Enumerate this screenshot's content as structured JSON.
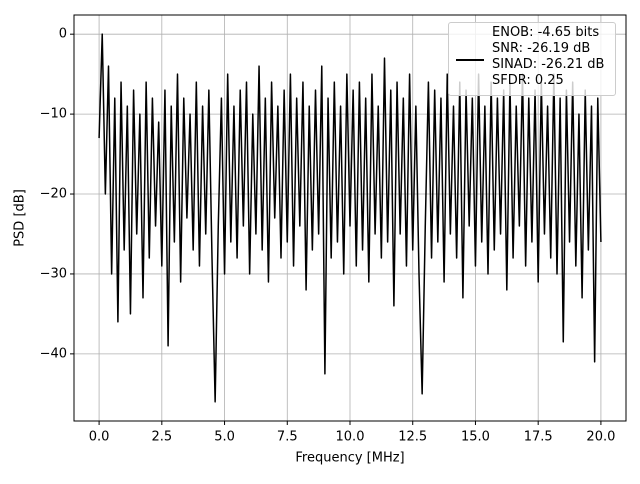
{
  "chart_data": {
    "type": "line",
    "x_label": "Frequency [MHz]",
    "y_label": "PSD [dB]",
    "xlim": [
      -1.0,
      21.0
    ],
    "ylim": [
      -48.4,
      2.4
    ],
    "xticks": [
      {
        "value": 0,
        "label": "0.0"
      },
      2.5,
      {
        "value": 5,
        "label": "5.0"
      },
      7.5,
      {
        "value": 10,
        "label": "10.0"
      },
      12.5,
      {
        "value": 15,
        "label": "15.0"
      },
      17.5,
      {
        "value": 20,
        "label": "20.0"
      }
    ],
    "yticks": [
      0,
      {
        "value": -10,
        "label": "−10"
      },
      {
        "value": -20,
        "label": "−20"
      },
      {
        "value": -30,
        "label": "−30"
      },
      {
        "value": -40,
        "label": "−40"
      }
    ],
    "grid": true,
    "legend": "upper right",
    "x": [
      0,
      0.125,
      0.25,
      0.375,
      0.5,
      0.625,
      0.75,
      0.875,
      1,
      1.125,
      1.25,
      1.375,
      1.5,
      1.625,
      1.75,
      1.875,
      2,
      2.125,
      2.25,
      2.375,
      2.5,
      2.625,
      2.75,
      2.875,
      3,
      3.125,
      3.25,
      3.375,
      3.5,
      3.625,
      3.75,
      3.875,
      4,
      4.125,
      4.25,
      4.375,
      4.5,
      4.625,
      4.75,
      4.875,
      5,
      5.125,
      5.25,
      5.375,
      5.5,
      5.625,
      5.75,
      5.875,
      6,
      6.125,
      6.25,
      6.375,
      6.5,
      6.625,
      6.75,
      6.875,
      7,
      7.125,
      7.25,
      7.375,
      7.5,
      7.625,
      7.75,
      7.875,
      8,
      8.125,
      8.25,
      8.375,
      8.5,
      8.625,
      8.75,
      8.875,
      9,
      9.125,
      9.25,
      9.375,
      9.5,
      9.625,
      9.75,
      9.875,
      10,
      10.125,
      10.25,
      10.375,
      10.5,
      10.625,
      10.75,
      10.875,
      11,
      11.125,
      11.25,
      11.375,
      11.5,
      11.625,
      11.75,
      11.875,
      12,
      12.125,
      12.25,
      12.375,
      12.5,
      12.625,
      12.75,
      12.875,
      13,
      13.125,
      13.25,
      13.375,
      13.5,
      13.625,
      13.75,
      13.875,
      14,
      14.125,
      14.25,
      14.375,
      14.5,
      14.625,
      14.75,
      14.875,
      15,
      15.125,
      15.25,
      15.375,
      15.5,
      15.625,
      15.75,
      15.875,
      16,
      16.125,
      16.25,
      16.375,
      16.5,
      16.625,
      16.75,
      16.875,
      17,
      17.125,
      17.25,
      17.375,
      17.5,
      17.625,
      17.75,
      17.875,
      18,
      18.125,
      18.25,
      18.375,
      18.5,
      18.625,
      18.75,
      18.875,
      19,
      19.125,
      19.25,
      19.375,
      19.5,
      19.625,
      19.75,
      19.875,
      20
    ],
    "series": [
      {
        "name": "ENOB: -4.65 bits\nSNR: -26.19 dB\nSINAD: -26.21 dB\nSFDR: 0.25",
        "color": "#000000",
        "values": [
          -13,
          0,
          -20,
          -4,
          -30,
          -8,
          -36,
          -6,
          -27,
          -9,
          -35,
          -7,
          -25,
          -10,
          -33,
          -6,
          -28,
          -8,
          -24,
          -11,
          -29,
          -7,
          -39,
          -9,
          -26,
          -5,
          -31,
          -8,
          -23,
          -10,
          -27,
          -6,
          -29,
          -9,
          -25,
          -7,
          -28,
          -46,
          -24,
          -8,
          -30,
          -5,
          -26,
          -9,
          -28,
          -7,
          -24,
          -6,
          -30,
          -10,
          -25,
          -4,
          -27,
          -8,
          -31,
          -6,
          -23,
          -9,
          -28,
          -7,
          -26,
          -5,
          -29,
          -8,
          -24,
          -6,
          -32,
          -9,
          -27,
          -7,
          -25,
          -4,
          -42.5,
          -8,
          -28,
          -6,
          -26,
          -9,
          -30,
          -5,
          -24,
          -7,
          -29,
          -6,
          -27,
          -8,
          -31,
          -5,
          -25,
          -9,
          -28,
          -3,
          -26,
          -7,
          -34,
          -6,
          -25,
          -8,
          -29,
          -5,
          -27,
          -9,
          -30,
          -45,
          -24,
          -6,
          -28,
          -7,
          -26,
          -8,
          -31,
          -5,
          -25,
          -9,
          -28,
          -6,
          -33,
          -7,
          -24,
          -8,
          -29,
          -5,
          -26,
          -9,
          -30,
          -6,
          -27,
          -8,
          -25,
          -7,
          -32,
          -6,
          -28,
          -9,
          -24,
          -5,
          -29,
          -8,
          -26,
          -7,
          -31,
          -6,
          -25,
          -9,
          -28,
          -5,
          -30,
          -8,
          -38.5,
          -7,
          -26,
          -6,
          -29,
          -10,
          -33,
          -7,
          -27,
          -9,
          -41,
          -8,
          -26
        ]
      }
    ]
  }
}
